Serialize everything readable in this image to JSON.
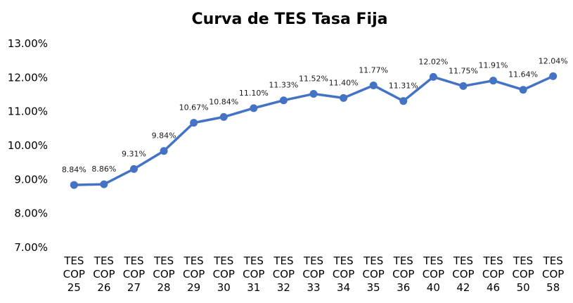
{
  "chart_data": {
    "type": "line",
    "title": "Curva de TES Tasa Fija",
    "xlabel": "",
    "ylabel": "",
    "categories": [
      [
        "TES",
        "COP",
        "25"
      ],
      [
        "TES",
        "COP",
        "26"
      ],
      [
        "TES",
        "COP",
        "27"
      ],
      [
        "TES",
        "COP",
        "28"
      ],
      [
        "TES",
        "COP",
        "29"
      ],
      [
        "TES",
        "COP",
        "30"
      ],
      [
        "TES",
        "COP",
        "31"
      ],
      [
        "TES",
        "COP",
        "32"
      ],
      [
        "TES",
        "COP",
        "33"
      ],
      [
        "TES",
        "COP",
        "34"
      ],
      [
        "TES",
        "COP",
        "35"
      ],
      [
        "TES",
        "COP",
        "36"
      ],
      [
        "TES",
        "COP",
        "40"
      ],
      [
        "TES",
        "COP",
        "42"
      ],
      [
        "TES",
        "COP",
        "46"
      ],
      [
        "TES",
        "COP",
        "50"
      ],
      [
        "TES",
        "COP",
        "58"
      ]
    ],
    "values": [
      8.84,
      8.86,
      9.31,
      9.84,
      10.67,
      10.84,
      11.1,
      11.33,
      11.52,
      11.4,
      11.77,
      11.31,
      12.02,
      11.75,
      11.91,
      11.64,
      12.04
    ],
    "data_labels": [
      "8.84%",
      "8.86%",
      "9.31%",
      "9.84%",
      "10.67%",
      "10.84%",
      "11.10%",
      "11.33%",
      "11.52%",
      "11.40%",
      "11.77%",
      "11.31%",
      "12.02%",
      "11.75%",
      "11.91%",
      "11.64%",
      "12.04%"
    ],
    "ylim": [
      7.0,
      13.0
    ],
    "yticks": [
      7,
      8,
      9,
      10,
      11,
      12,
      13
    ],
    "ytick_labels": [
      "7.00%",
      "8.00%",
      "9.00%",
      "10.00%",
      "11.00%",
      "12.00%",
      "13.00%"
    ],
    "grid": false,
    "legend": "none",
    "series_color": "#4472C4"
  }
}
